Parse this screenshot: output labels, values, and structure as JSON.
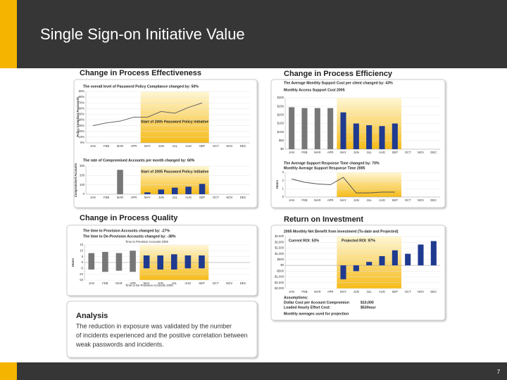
{
  "title": "Single Sign-on Initiative Value",
  "page_number": "7",
  "headings": {
    "effectiveness": "Change in Process Effectiveness",
    "efficiency": "Change in Process Efficiency",
    "quality": "Change in Process Quality",
    "roi": "Return on Investment"
  },
  "charts": [
    {
      "type": "line",
      "title": "The overall level of Password Policy Compliance changed by: 50%",
      "ylabel": "Policy Compliant Passwords",
      "annotation": "Start of 2005 Password Policy Initiative",
      "categories": [
        "JAN",
        "FEB",
        "MAR",
        "APR",
        "MAY",
        "JUN",
        "JUL",
        "AUG",
        "SEP",
        "OCT",
        "NOV",
        "DEC"
      ],
      "values": [
        30,
        35,
        38,
        45,
        45,
        55,
        52,
        62,
        70,
        null,
        null,
        null
      ],
      "color": "#666666",
      "ylim": [
        0,
        90
      ],
      "yticks": [
        {
          "value": 0,
          "label": "0%"
        },
        {
          "value": 10,
          "label": "10%"
        },
        {
          "value": 20,
          "label": "20%"
        },
        {
          "value": 30,
          "label": "30%"
        },
        {
          "value": 40,
          "label": "40%"
        },
        {
          "value": 50,
          "label": "50%"
        },
        {
          "value": 60,
          "label": "60%"
        },
        {
          "value": 70,
          "label": "70%"
        },
        {
          "value": 80,
          "label": "80%"
        },
        {
          "value": 90,
          "label": "90%"
        }
      ]
    },
    {
      "type": "bar",
      "title": "The rate of Compromised Accounts per month changed by: 60%",
      "ylabel": "Compromised Accounts",
      "annotation": "Start of 2005 Password Policy Initiative",
      "categories": [
        "JAN",
        "FEB",
        "MAR",
        "APR",
        "MAY",
        "JUN",
        "JUL",
        "AUG",
        "SEP",
        "OCT",
        "NOV",
        "DEC"
      ],
      "values": [
        null,
        null,
        260,
        null,
        20,
        50,
        70,
        80,
        110,
        null,
        null,
        null
      ],
      "color": "#777777",
      "highlight_color": "#1f3a8f",
      "ylim": [
        0,
        300
      ],
      "yticks": [
        0,
        100,
        200,
        300
      ]
    },
    {
      "type": "bar",
      "title": "The Average Monthly Support Cost per client changed by: 43%",
      "subtitle": "Monthly Access Support Cost 2005",
      "categories": [
        "JAN",
        "FEB",
        "MAR",
        "APR",
        "MAY",
        "JUN",
        "JUL",
        "AUG",
        "SEP",
        "OCT",
        "NOV",
        "DEC"
      ],
      "values": [
        245,
        240,
        240,
        240,
        215,
        150,
        140,
        135,
        150,
        null,
        null,
        null
      ],
      "color": "#777777",
      "highlight_color": "#1f3a8f",
      "ylim": [
        0,
        300
      ],
      "yticks": [
        {
          "value": 0,
          "label": "$0"
        },
        {
          "value": 50,
          "label": "$50"
        },
        {
          "value": 100,
          "label": "$100"
        },
        {
          "value": 150,
          "label": "$150"
        },
        {
          "value": 200,
          "label": "$200"
        },
        {
          "value": 250,
          "label": "$250"
        },
        {
          "value": 300,
          "label": "$300"
        }
      ]
    },
    {
      "type": "line",
      "title": "The Average Support Response Time changed by: 70%",
      "subtitle": "Monthly Average Support Response Time 2005",
      "ylabel": "Hours",
      "categories": [
        "JAN",
        "FEB",
        "MAR",
        "APR",
        "MAY",
        "JUN",
        "JUL",
        "AUG",
        "SEP",
        "OCT",
        "NOV",
        "DEC"
      ],
      "values": [
        2.2,
        1.8,
        1.6,
        1.5,
        2.4,
        0.5,
        0.5,
        0.6,
        0.6,
        null,
        null,
        null
      ],
      "color": "#555555",
      "ylim": [
        0,
        3
      ],
      "yticks": [
        0,
        1,
        2,
        3
      ]
    },
    {
      "type": "bar",
      "title": "The time to Provision Accounts changed by: -27%",
      "subtitle": "The time to De-Provision Accounts changed by: -38%",
      "ylabel": "Hours",
      "categories": [
        "JAN",
        "FEB",
        "MAR",
        "APR",
        "MAY",
        "JUN",
        "JUL",
        "AUG",
        "SEP",
        "OCT",
        "NOV",
        "DEC"
      ],
      "series": [
        {
          "name": "Time to Provision Accounts 2005",
          "color": "#777777",
          "highlight_color": "#1f3a8f",
          "values": [
            8,
            9,
            8,
            10,
            6,
            6,
            7,
            6,
            6,
            null,
            null,
            null
          ]
        },
        {
          "name": "Time to De-Provision Accounts 2005",
          "color": "#777777",
          "highlight_color": "#1f3a8f",
          "values": [
            -6,
            -8,
            -7,
            -8,
            -5,
            -6,
            -6,
            -5,
            -5,
            null,
            null,
            null
          ]
        }
      ],
      "ylim": [
        -15,
        15
      ],
      "yticks": [
        -15,
        -10,
        -5,
        0,
        5,
        10,
        15
      ]
    },
    {
      "type": "bar",
      "title": "2005 Monthly Net Benefit from Investment (To-date and Projected)",
      "note1": "Current ROI: 53%",
      "note2": "Projected ROI: 97%",
      "categories": [
        "JAN",
        "FEB",
        "MAR",
        "APR",
        "MAY",
        "JUN",
        "JUL",
        "AUG",
        "SEP",
        "OCT",
        "NOV",
        "DEC"
      ],
      "values": [
        null,
        null,
        null,
        null,
        -1200,
        -500,
        300,
        800,
        1300,
        1000,
        1800,
        2100
      ],
      "color": "#1f3a8f",
      "highlight_color": "#1f3a8f",
      "ylim": [
        -2000,
        2500
      ],
      "yticks": [
        {
          "value": -2000,
          "label": "-$2,000"
        },
        {
          "value": -1500,
          "label": "-$1,500"
        },
        {
          "value": -1000,
          "label": "-$1,000"
        },
        {
          "value": -500,
          "label": "-$500"
        },
        {
          "value": 0,
          "label": "$0"
        },
        {
          "value": 500,
          "label": "$500"
        },
        {
          "value": 1000,
          "label": "$1,000"
        },
        {
          "value": 1500,
          "label": "$1,500"
        },
        {
          "value": 2000,
          "label": "$2,000"
        },
        {
          "value": 2500,
          "label": "$2,500"
        }
      ]
    }
  ],
  "assumptions": {
    "heading": "Assumptions:",
    "rows": [
      [
        "Dollar Cost per Account Compromise:",
        "$10,000"
      ],
      [
        "Loaded Hourly Effort Cost:",
        "$53/hour"
      ]
    ],
    "footnote": "Monthly averages used for projection"
  },
  "analysis": {
    "heading": "Analysis",
    "lines": [
      "The reduction in exposure was validated by the number",
      "of incidents experienced and the positive correlation between",
      "weak passwords and incidents."
    ]
  }
}
